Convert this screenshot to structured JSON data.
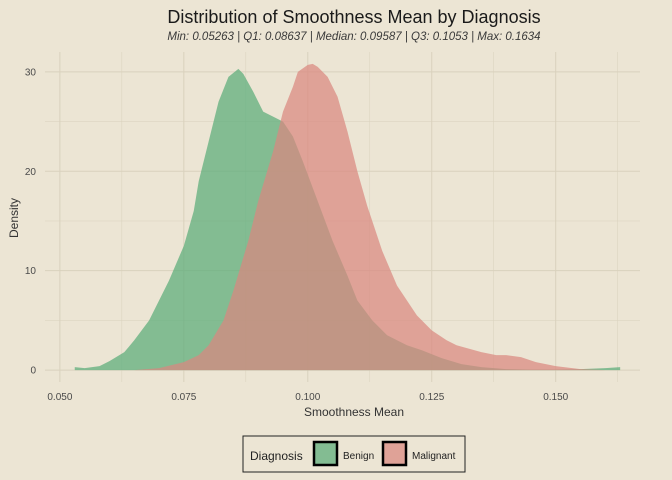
{
  "chart_data": {
    "type": "area",
    "title": "Distribution of Smoothness Mean by Diagnosis",
    "subtitle": "Min: 0.05263 | Q1: 0.08637 | Median: 0.09587 | Q3: 0.1053 | Max: 0.1634",
    "xlabel": "Smoothness Mean",
    "ylabel": "Density",
    "xlim": [
      0.047,
      0.167
    ],
    "ylim": [
      -1.2,
      32
    ],
    "x_ticks": [
      0.05,
      0.075,
      0.1,
      0.125,
      0.15
    ],
    "x_tick_labels": [
      "0.050",
      "0.075",
      "0.100",
      "0.125",
      "0.150"
    ],
    "y_ticks": [
      0,
      10,
      20,
      30
    ],
    "y_tick_labels": [
      "0",
      "10",
      "20",
      "30"
    ],
    "grid": true,
    "legend": {
      "title": "Diagnosis",
      "position": "bottom"
    },
    "series": [
      {
        "name": "Benign",
        "color": "#5aac78",
        "x": [
          0.053,
          0.055,
          0.058,
          0.06,
          0.063,
          0.065,
          0.068,
          0.07,
          0.072,
          0.075,
          0.077,
          0.078,
          0.08,
          0.082,
          0.084,
          0.086,
          0.087,
          0.089,
          0.091,
          0.093,
          0.095,
          0.097,
          0.099,
          0.102,
          0.105,
          0.108,
          0.11,
          0.113,
          0.116,
          0.12,
          0.123,
          0.127,
          0.131,
          0.135,
          0.14,
          0.145,
          0.15,
          0.155,
          0.16,
          0.163
        ],
        "y": [
          0.3,
          0.2,
          0.4,
          0.9,
          1.8,
          3,
          5,
          7,
          9,
          12.5,
          16,
          19,
          23,
          27,
          29.5,
          30.3,
          29.8,
          28,
          26,
          25.5,
          25,
          23.5,
          21,
          17,
          13,
          9.5,
          7,
          5,
          3.5,
          2.5,
          2,
          1.2,
          0.6,
          0.3,
          0.1,
          0.05,
          0.05,
          0.1,
          0.2,
          0.3
        ]
      },
      {
        "name": "Malignant",
        "color": "#d9887f",
        "x": [
          0.065,
          0.07,
          0.075,
          0.078,
          0.08,
          0.083,
          0.085,
          0.088,
          0.09,
          0.093,
          0.095,
          0.097,
          0.098,
          0.1,
          0.101,
          0.102,
          0.104,
          0.106,
          0.108,
          0.11,
          0.112,
          0.115,
          0.118,
          0.12,
          0.122,
          0.125,
          0.128,
          0.13,
          0.135,
          0.138,
          0.14,
          0.143,
          0.146,
          0.15,
          0.155,
          0.16
        ],
        "y": [
          0,
          0.2,
          0.8,
          1.5,
          2.5,
          5,
          8,
          13,
          17,
          22,
          26,
          28.5,
          30,
          30.7,
          30.8,
          30.5,
          29.5,
          27.5,
          24,
          20,
          16.5,
          12,
          8.5,
          7,
          5.5,
          4,
          3,
          2.5,
          1.8,
          1.5,
          1.5,
          1.3,
          0.8,
          0.4,
          0.1,
          0
        ]
      }
    ]
  }
}
